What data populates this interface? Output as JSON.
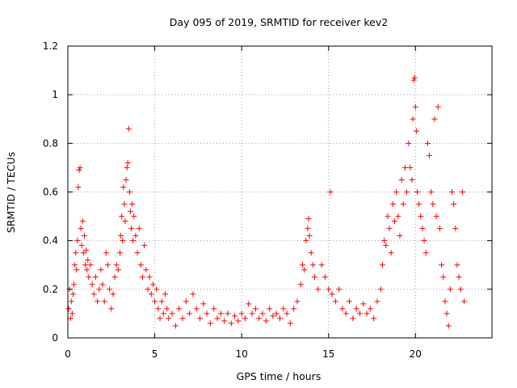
{
  "chart_data": {
    "type": "scatter",
    "title": "Day 095 of 2019, SRMTID for receiver kev2",
    "xlabel": "GPS time / hours",
    "ylabel": "SRMTID / TECUs",
    "xlim": [
      0,
      24.4
    ],
    "ylim": [
      0,
      1.2
    ],
    "xticks": [
      0,
      5,
      10,
      15,
      20
    ],
    "xtick_labels": [
      "0",
      "5",
      "10",
      "15",
      "20"
    ],
    "yticks": [
      0,
      0.2,
      0.4,
      0.6,
      0.8,
      1.0,
      1.2
    ],
    "ytick_labels": [
      "0",
      "0.2",
      "0.4",
      "0.6",
      "0.8",
      "1",
      "1.2"
    ],
    "grid": true,
    "marker": "+",
    "series": [
      {
        "name": "kev2",
        "color": "#ff0000",
        "points": [
          [
            0.05,
            0.12
          ],
          [
            0.1,
            0.2
          ],
          [
            0.15,
            0.08
          ],
          [
            0.2,
            0.15
          ],
          [
            0.25,
            0.1
          ],
          [
            0.3,
            0.18
          ],
          [
            0.35,
            0.22
          ],
          [
            0.4,
            0.3
          ],
          [
            0.45,
            0.35
          ],
          [
            0.5,
            0.28
          ],
          [
            0.55,
            0.4
          ],
          [
            0.6,
            0.62
          ],
          [
            0.65,
            0.69
          ],
          [
            0.7,
            0.7
          ],
          [
            0.75,
            0.45
          ],
          [
            0.8,
            0.38
          ],
          [
            0.85,
            0.48
          ],
          [
            0.9,
            0.35
          ],
          [
            0.95,
            0.42
          ],
          [
            1.0,
            0.3
          ],
          [
            1.05,
            0.36
          ],
          [
            1.1,
            0.28
          ],
          [
            1.15,
            0.32
          ],
          [
            1.2,
            0.25
          ],
          [
            1.3,
            0.3
          ],
          [
            1.4,
            0.22
          ],
          [
            1.5,
            0.18
          ],
          [
            1.6,
            0.25
          ],
          [
            1.7,
            0.15
          ],
          [
            1.8,
            0.2
          ],
          [
            1.9,
            0.28
          ],
          [
            2.0,
            0.22
          ],
          [
            2.1,
            0.15
          ],
          [
            2.2,
            0.35
          ],
          [
            2.3,
            0.3
          ],
          [
            2.4,
            0.2
          ],
          [
            2.5,
            0.12
          ],
          [
            2.6,
            0.18
          ],
          [
            2.7,
            0.25
          ],
          [
            2.8,
            0.3
          ],
          [
            2.9,
            0.28
          ],
          [
            3.0,
            0.35
          ],
          [
            3.05,
            0.42
          ],
          [
            3.1,
            0.5
          ],
          [
            3.15,
            0.4
          ],
          [
            3.2,
            0.62
          ],
          [
            3.25,
            0.55
          ],
          [
            3.3,
            0.48
          ],
          [
            3.35,
            0.65
          ],
          [
            3.4,
            0.7
          ],
          [
            3.45,
            0.72
          ],
          [
            3.5,
            0.86
          ],
          [
            3.55,
            0.6
          ],
          [
            3.6,
            0.52
          ],
          [
            3.65,
            0.45
          ],
          [
            3.7,
            0.55
          ],
          [
            3.75,
            0.4
          ],
          [
            3.8,
            0.5
          ],
          [
            3.9,
            0.42
          ],
          [
            4.0,
            0.35
          ],
          [
            4.1,
            0.45
          ],
          [
            4.2,
            0.3
          ],
          [
            4.3,
            0.25
          ],
          [
            4.4,
            0.38
          ],
          [
            4.5,
            0.28
          ],
          [
            4.6,
            0.2
          ],
          [
            4.7,
            0.25
          ],
          [
            4.8,
            0.18
          ],
          [
            4.9,
            0.22
          ],
          [
            5.0,
            0.15
          ],
          [
            5.1,
            0.2
          ],
          [
            5.2,
            0.12
          ],
          [
            5.3,
            0.08
          ],
          [
            5.4,
            0.15
          ],
          [
            5.5,
            0.1
          ],
          [
            5.6,
            0.18
          ],
          [
            5.7,
            0.12
          ],
          [
            5.8,
            0.08
          ],
          [
            6.0,
            0.1
          ],
          [
            6.2,
            0.05
          ],
          [
            6.4,
            0.12
          ],
          [
            6.6,
            0.08
          ],
          [
            6.8,
            0.15
          ],
          [
            7.0,
            0.1
          ],
          [
            7.2,
            0.18
          ],
          [
            7.4,
            0.12
          ],
          [
            7.6,
            0.08
          ],
          [
            7.8,
            0.14
          ],
          [
            8.0,
            0.1
          ],
          [
            8.2,
            0.06
          ],
          [
            8.4,
            0.12
          ],
          [
            8.6,
            0.08
          ],
          [
            8.8,
            0.1
          ],
          [
            9.0,
            0.07
          ],
          [
            9.2,
            0.1
          ],
          [
            9.4,
            0.06
          ],
          [
            9.6,
            0.09
          ],
          [
            9.8,
            0.07
          ],
          [
            10.0,
            0.1
          ],
          [
            10.2,
            0.08
          ],
          [
            10.4,
            0.14
          ],
          [
            10.6,
            0.1
          ],
          [
            10.8,
            0.12
          ],
          [
            11.0,
            0.08
          ],
          [
            11.2,
            0.1
          ],
          [
            11.4,
            0.07
          ],
          [
            11.6,
            0.12
          ],
          [
            11.8,
            0.09
          ],
          [
            12.0,
            0.1
          ],
          [
            12.2,
            0.08
          ],
          [
            12.4,
            0.12
          ],
          [
            12.6,
            0.1
          ],
          [
            12.8,
            0.06
          ],
          [
            13.0,
            0.12
          ],
          [
            13.2,
            0.15
          ],
          [
            13.4,
            0.22
          ],
          [
            13.5,
            0.3
          ],
          [
            13.6,
            0.28
          ],
          [
            13.7,
            0.4
          ],
          [
            13.8,
            0.45
          ],
          [
            13.85,
            0.49
          ],
          [
            13.9,
            0.42
          ],
          [
            14.0,
            0.35
          ],
          [
            14.1,
            0.3
          ],
          [
            14.2,
            0.25
          ],
          [
            14.4,
            0.2
          ],
          [
            14.6,
            0.3
          ],
          [
            14.8,
            0.25
          ],
          [
            15.0,
            0.2
          ],
          [
            15.1,
            0.6
          ],
          [
            15.2,
            0.18
          ],
          [
            15.4,
            0.15
          ],
          [
            15.6,
            0.2
          ],
          [
            15.8,
            0.12
          ],
          [
            16.0,
            0.1
          ],
          [
            16.2,
            0.15
          ],
          [
            16.4,
            0.08
          ],
          [
            16.6,
            0.12
          ],
          [
            16.8,
            0.1
          ],
          [
            17.0,
            0.14
          ],
          [
            17.2,
            0.1
          ],
          [
            17.4,
            0.12
          ],
          [
            17.6,
            0.08
          ],
          [
            17.8,
            0.15
          ],
          [
            18.0,
            0.2
          ],
          [
            18.1,
            0.3
          ],
          [
            18.2,
            0.4
          ],
          [
            18.3,
            0.38
          ],
          [
            18.4,
            0.5
          ],
          [
            18.5,
            0.45
          ],
          [
            18.6,
            0.35
          ],
          [
            18.7,
            0.55
          ],
          [
            18.8,
            0.48
          ],
          [
            18.9,
            0.6
          ],
          [
            19.0,
            0.5
          ],
          [
            19.1,
            0.42
          ],
          [
            19.2,
            0.65
          ],
          [
            19.3,
            0.55
          ],
          [
            19.4,
            0.7
          ],
          [
            19.5,
            0.6
          ],
          [
            19.6,
            0.8
          ],
          [
            19.7,
            0.7
          ],
          [
            19.8,
            0.65
          ],
          [
            19.85,
            0.9
          ],
          [
            19.9,
            1.06
          ],
          [
            19.95,
            1.07
          ],
          [
            20.0,
            0.95
          ],
          [
            20.05,
            0.85
          ],
          [
            20.1,
            0.6
          ],
          [
            20.2,
            0.55
          ],
          [
            20.3,
            0.5
          ],
          [
            20.4,
            0.45
          ],
          [
            20.5,
            0.4
          ],
          [
            20.6,
            0.35
          ],
          [
            20.7,
            0.8
          ],
          [
            20.8,
            0.75
          ],
          [
            20.9,
            0.6
          ],
          [
            21.0,
            0.55
          ],
          [
            21.1,
            0.9
          ],
          [
            21.2,
            0.5
          ],
          [
            21.3,
            0.95
          ],
          [
            21.4,
            0.45
          ],
          [
            21.5,
            0.3
          ],
          [
            21.6,
            0.25
          ],
          [
            21.7,
            0.15
          ],
          [
            21.8,
            0.1
          ],
          [
            21.9,
            0.05
          ],
          [
            22.0,
            0.2
          ],
          [
            22.1,
            0.6
          ],
          [
            22.2,
            0.55
          ],
          [
            22.3,
            0.45
          ],
          [
            22.4,
            0.3
          ],
          [
            22.5,
            0.25
          ],
          [
            22.6,
            0.2
          ],
          [
            22.7,
            0.6
          ],
          [
            22.8,
            0.15
          ]
        ]
      }
    ]
  }
}
